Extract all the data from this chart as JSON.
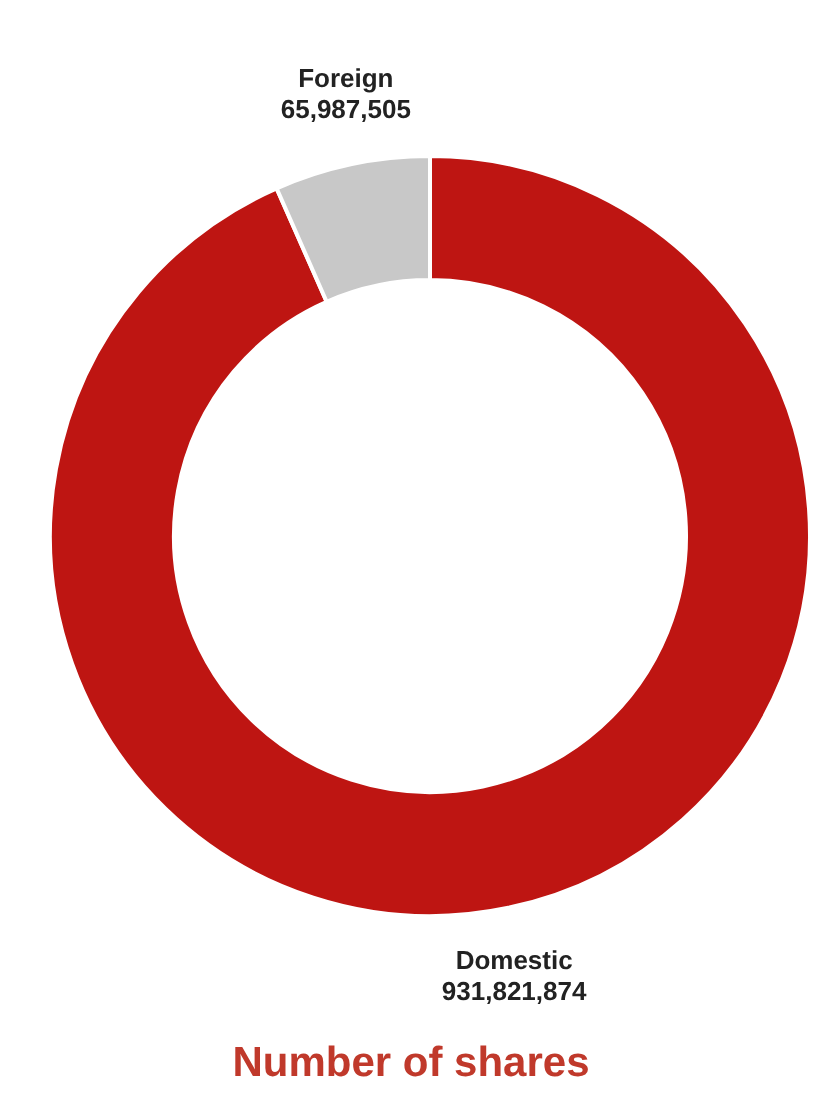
{
  "chart_data": {
    "type": "donut",
    "title": "Number of shares",
    "categories": [
      "Domestic",
      "Foreign"
    ],
    "values": [
      931821874,
      65987505
    ],
    "value_labels": [
      "931,821,874",
      "65,987,505"
    ],
    "colors": [
      "#be1512",
      "#c8c8c8"
    ]
  }
}
